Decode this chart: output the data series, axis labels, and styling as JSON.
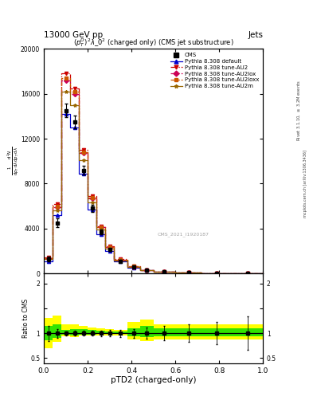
{
  "title_top": "13000 GeV pp",
  "title_right": "Jets",
  "panel_title": "$(p_T^D)^2\\lambda\\_0^2$ (charged only) (CMS jet substructure)",
  "watermark": "CMS_2021_I1920187",
  "right_label_top": "Rivet 3.1.10, $\\geq$ 3.2M events",
  "right_label_bottom": "mcplots.cern.ch [arXiv:1306.3436]",
  "xlabel": "pTD2 (charged-only)",
  "ylabel_ratio": "Ratio to CMS",
  "ylim_main": [
    0,
    20000
  ],
  "ylim_ratio": [
    0.4,
    2.2
  ],
  "xlim": [
    0,
    1.0
  ],
  "yticks_main": [
    0,
    4000,
    8000,
    12000,
    16000,
    20000
  ],
  "ytick_labels_main": [
    "0",
    "4000",
    "8000",
    "12000",
    "16000",
    "20000"
  ],
  "yticks_ratio": [
    0.5,
    1.0,
    1.5,
    2.0
  ],
  "ytick_labels_ratio": [
    "0.5",
    "1",
    "",
    "2"
  ],
  "bin_edges": [
    0.0,
    0.04,
    0.08,
    0.12,
    0.16,
    0.2,
    0.24,
    0.28,
    0.32,
    0.38,
    0.44,
    0.5,
    0.6,
    0.72,
    0.86,
    1.0
  ],
  "x_centers": [
    0.02,
    0.06,
    0.1,
    0.14,
    0.18,
    0.22,
    0.26,
    0.3,
    0.35,
    0.41,
    0.47,
    0.55,
    0.66,
    0.79,
    0.93
  ],
  "cms_data": [
    1300,
    4500,
    14500,
    13500,
    9200,
    5800,
    3700,
    2100,
    1100,
    560,
    270,
    135,
    70,
    32,
    12
  ],
  "cms_errors": [
    200,
    400,
    600,
    600,
    400,
    300,
    200,
    130,
    80,
    50,
    30,
    20,
    12,
    7,
    4
  ],
  "pythia_default": [
    1100,
    5200,
    14200,
    13000,
    8900,
    5700,
    3500,
    2000,
    1050,
    520,
    255,
    128,
    66,
    30,
    11
  ],
  "pythia_au2": [
    1400,
    6200,
    17800,
    16500,
    11000,
    6900,
    4200,
    2400,
    1250,
    620,
    300,
    150,
    78,
    36,
    14
  ],
  "pythia_au2lox": [
    1350,
    5900,
    17200,
    16000,
    10700,
    6700,
    4100,
    2330,
    1220,
    605,
    293,
    147,
    76,
    35,
    14
  ],
  "pythia_au2loxx": [
    1380,
    6000,
    17400,
    16200,
    10800,
    6750,
    4130,
    2350,
    1230,
    610,
    296,
    148,
    77,
    36,
    14
  ],
  "pythia_au2m": [
    1250,
    5600,
    16200,
    15000,
    10100,
    6350,
    3900,
    2220,
    1160,
    575,
    278,
    140,
    73,
    34,
    13
  ],
  "ratio_yellow_lo": [
    0.7,
    0.82,
    0.94,
    0.93,
    0.95,
    0.95,
    0.96,
    0.95,
    0.95,
    0.88,
    0.85,
    0.88,
    0.88,
    0.88,
    0.88
  ],
  "ratio_yellow_hi": [
    1.3,
    1.35,
    1.18,
    1.17,
    1.15,
    1.12,
    1.1,
    1.08,
    1.07,
    1.22,
    1.28,
    1.18,
    1.18,
    1.18,
    1.18
  ],
  "ratio_green_lo": [
    0.86,
    0.91,
    0.97,
    0.96,
    0.97,
    0.97,
    0.98,
    0.98,
    0.98,
    0.94,
    0.92,
    0.94,
    0.94,
    0.94,
    0.94
  ],
  "ratio_green_hi": [
    1.14,
    1.17,
    1.07,
    1.08,
    1.08,
    1.06,
    1.05,
    1.04,
    1.04,
    1.1,
    1.14,
    1.1,
    1.1,
    1.1,
    1.1
  ],
  "color_cms": "#000000",
  "color_default": "#0000cc",
  "color_au2": "#cc0000",
  "color_au2lox": "#cc0055",
  "color_au2loxx": "#cc5500",
  "color_au2m": "#996600",
  "color_yellow": "#ffff00",
  "color_green": "#00dd00",
  "bg_color": "#ffffff"
}
